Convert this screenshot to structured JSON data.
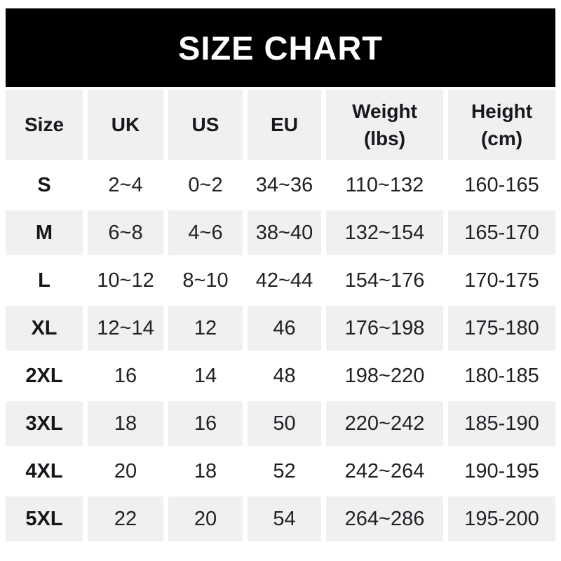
{
  "banner": {
    "title": "SIZE CHART",
    "bg": "#000000",
    "text_color": "#ffffff"
  },
  "table": {
    "alt_row_bg": "#f0f0f0",
    "columns": [
      {
        "id": "size",
        "label": "Size",
        "unit": ""
      },
      {
        "id": "uk",
        "label": "UK",
        "unit": ""
      },
      {
        "id": "us",
        "label": "US",
        "unit": ""
      },
      {
        "id": "eu",
        "label": "EU",
        "unit": ""
      },
      {
        "id": "weight",
        "label": "Weight",
        "unit": "(lbs)"
      },
      {
        "id": "height",
        "label": "Height",
        "unit": "(cm)"
      }
    ],
    "rows": [
      {
        "size": "S",
        "uk": "2~4",
        "us": "0~2",
        "eu": "34~36",
        "weight": "110~132",
        "height": "160-165"
      },
      {
        "size": "M",
        "uk": "6~8",
        "us": "4~6",
        "eu": "38~40",
        "weight": "132~154",
        "height": "165-170"
      },
      {
        "size": "L",
        "uk": "10~12",
        "us": "8~10",
        "eu": "42~44",
        "weight": "154~176",
        "height": "170-175"
      },
      {
        "size": "XL",
        "uk": "12~14",
        "us": "12",
        "eu": "46",
        "weight": "176~198",
        "height": "175-180"
      },
      {
        "size": "2XL",
        "uk": "16",
        "us": "14",
        "eu": "48",
        "weight": "198~220",
        "height": "180-185"
      },
      {
        "size": "3XL",
        "uk": "18",
        "us": "16",
        "eu": "50",
        "weight": "220~242",
        "height": "185-190"
      },
      {
        "size": "4XL",
        "uk": "20",
        "us": "18",
        "eu": "52",
        "weight": "242~264",
        "height": "190-195"
      },
      {
        "size": "5XL",
        "uk": "22",
        "us": "20",
        "eu": "54",
        "weight": "264~286",
        "height": "195-200"
      }
    ]
  }
}
